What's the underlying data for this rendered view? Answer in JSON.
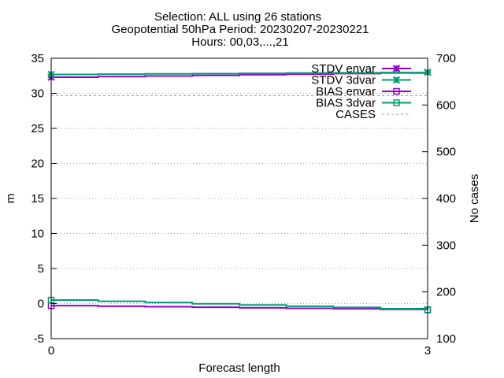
{
  "chart_data": {
    "type": "line",
    "title_lines": [
      "Selection: ALL using    26 stations",
      "Geopotential 50hPa   Period: 20230207-20230221",
      "Hours: 00,03,...,21"
    ],
    "xlabel": "Forecast length",
    "ylabel": "m",
    "y2label": "No cases",
    "xlim": [
      0,
      3
    ],
    "ylim": [
      -5,
      35
    ],
    "y2lim": [
      100,
      700
    ],
    "x_ticks": [
      0,
      3
    ],
    "y_ticks": [
      -5,
      0,
      5,
      10,
      15,
      20,
      25,
      30,
      35
    ],
    "y2_ticks": [
      100,
      200,
      300,
      400,
      500,
      600,
      700
    ],
    "grid": true,
    "legend_position": "top-right",
    "x": [
      0,
      3
    ],
    "series": [
      {
        "name": "STDV envar",
        "axis": "y",
        "marker": "star",
        "color": "#9400d3",
        "values": [
          32.3,
          33.0
        ]
      },
      {
        "name": "STDV 3dvar",
        "axis": "y",
        "marker": "star",
        "color": "#009e73",
        "values": [
          32.7,
          33.0
        ]
      },
      {
        "name": "BIAS envar",
        "axis": "y",
        "marker": "square",
        "color": "#9400d3",
        "values": [
          -0.3,
          -0.9
        ]
      },
      {
        "name": "BIAS 3dvar",
        "axis": "y",
        "marker": "square",
        "color": "#009e73",
        "values": [
          0.5,
          -0.9
        ]
      },
      {
        "name": "CASES",
        "axis": "y2",
        "marker": "none",
        "color": "#a0a0a0",
        "dashed": true,
        "values": [
          620,
          620
        ]
      }
    ]
  }
}
